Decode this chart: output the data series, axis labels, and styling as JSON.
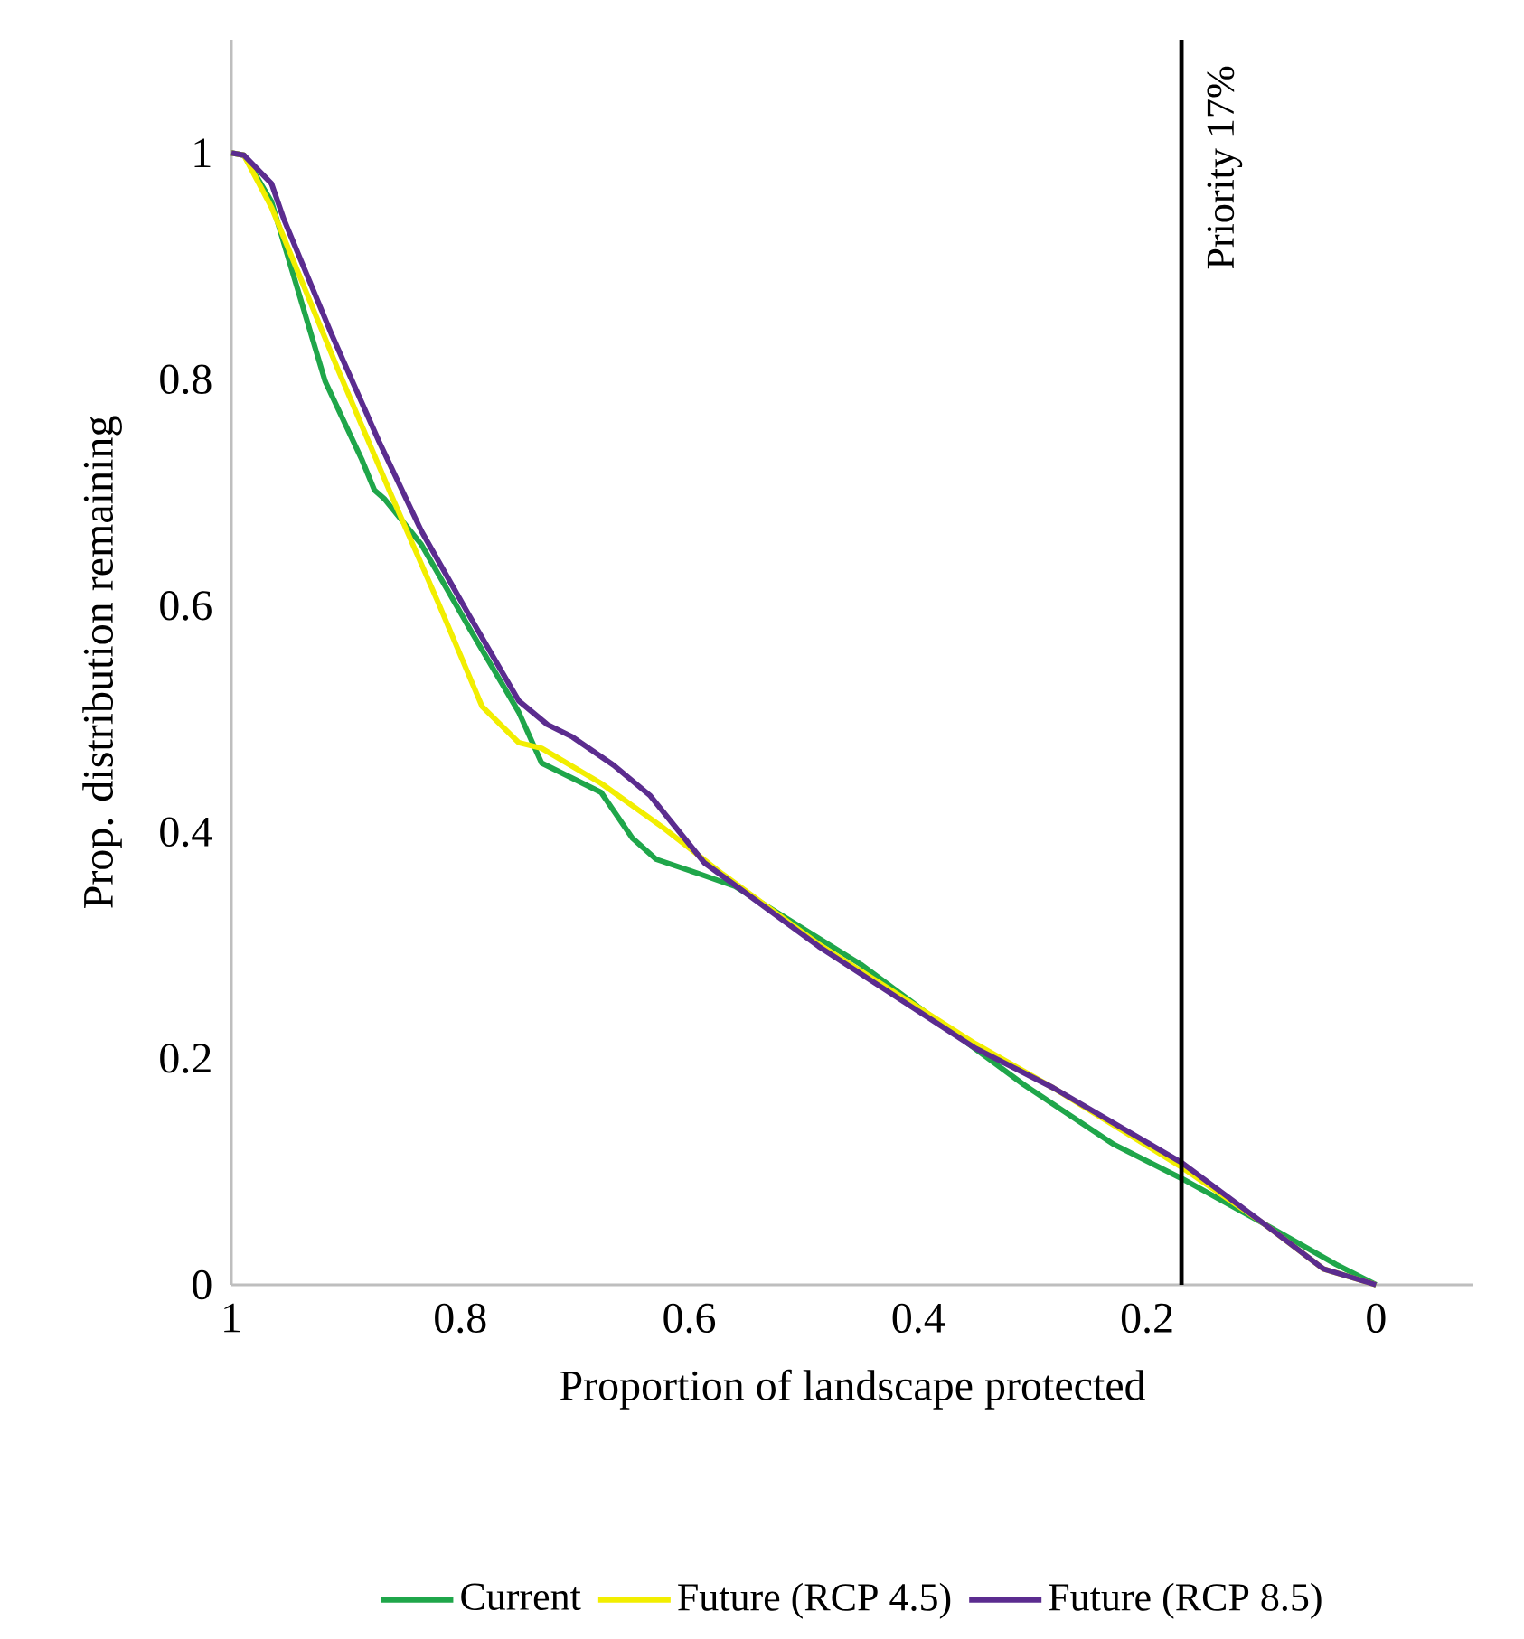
{
  "chart_data": {
    "type": "line",
    "xlabel": "Proportion of landscape protected",
    "ylabel": "Prop. distribution remaining",
    "xlim": [
      1,
      -0.085
    ],
    "ylim": [
      0,
      1.1
    ],
    "xticks": [
      {
        "value": 1,
        "label": "1"
      },
      {
        "value": 0.8,
        "label": "0.8"
      },
      {
        "value": 0.6,
        "label": "0.6"
      },
      {
        "value": 0.4,
        "label": "0.4"
      },
      {
        "value": 0.2,
        "label": "0.2"
      },
      {
        "value": 0,
        "label": "0"
      }
    ],
    "yticks": [
      {
        "value": 0,
        "label": "0"
      },
      {
        "value": 0.2,
        "label": "0.2"
      },
      {
        "value": 0.4,
        "label": "0.4"
      },
      {
        "value": 0.6,
        "label": "0.6"
      },
      {
        "value": 0.8,
        "label": "0.8"
      },
      {
        "value": 1,
        "label": "1"
      }
    ],
    "legend": "bottom",
    "ref_lines": [
      {
        "axis": "x",
        "value": 0.17,
        "label": "Priority 17%",
        "color": "#000000"
      }
    ],
    "series": [
      {
        "name": "Current",
        "color": "#1fa64a",
        "x": [
          1,
          0.989,
          0.965,
          0.918,
          0.886,
          0.875,
          0.866,
          0.834,
          0.792,
          0.749,
          0.729,
          0.677,
          0.65,
          0.629,
          0.591,
          0.56,
          0.45,
          0.308,
          0.229,
          0.17,
          0.098,
          0.035,
          0
        ],
        "values": [
          1,
          0.998,
          0.957,
          0.798,
          0.729,
          0.702,
          0.694,
          0.654,
          0.58,
          0.506,
          0.461,
          0.435,
          0.395,
          0.376,
          0.363,
          0.352,
          0.283,
          0.177,
          0.124,
          0.094,
          0.054,
          0.018,
          0
        ]
      },
      {
        "name": "Future (RCP 4.5)",
        "color": "#f2ee00",
        "x": [
          1,
          0.989,
          0.965,
          0.907,
          0.86,
          0.819,
          0.781,
          0.749,
          0.729,
          0.677,
          0.623,
          0.571,
          0.487,
          0.35,
          0.282,
          0.17,
          0.098,
          0.046,
          0
        ],
        "values": [
          1,
          0.998,
          0.952,
          0.809,
          0.697,
          0.602,
          0.511,
          0.479,
          0.474,
          0.443,
          0.404,
          0.363,
          0.301,
          0.213,
          0.174,
          0.104,
          0.054,
          0.014,
          0
        ]
      },
      {
        "name": "Future (RCP 8.5)",
        "color": "#5b2c8f",
        "x": [
          1,
          0.989,
          0.965,
          0.954,
          0.913,
          0.871,
          0.834,
          0.792,
          0.749,
          0.724,
          0.702,
          0.666,
          0.634,
          0.587,
          0.487,
          0.35,
          0.282,
          0.17,
          0.098,
          0.046,
          0
        ],
        "values": [
          1,
          0.998,
          0.973,
          0.941,
          0.841,
          0.745,
          0.666,
          0.591,
          0.516,
          0.495,
          0.484,
          0.459,
          0.432,
          0.373,
          0.299,
          0.209,
          0.174,
          0.108,
          0.054,
          0.014,
          0
        ]
      }
    ]
  }
}
